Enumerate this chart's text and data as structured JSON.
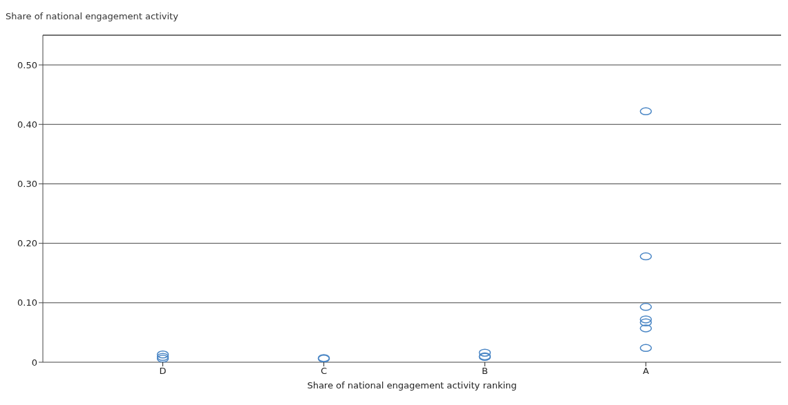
{
  "chart_data": {
    "type": "scatter",
    "ylabel": "Share of national engagement activity",
    "xlabel": "Share of national engagement activity ranking",
    "categories": [
      "D",
      "C",
      "B",
      "A"
    ],
    "series": [
      {
        "color": "#4a86c5",
        "x": [
          "D",
          "D",
          "D",
          "C",
          "C",
          "B",
          "B",
          "B",
          "A",
          "A",
          "A",
          "A",
          "A",
          "A",
          "A"
        ],
        "values": [
          0.006,
          0.009,
          0.013,
          0.006,
          0.007,
          0.009,
          0.01,
          0.016,
          0.422,
          0.178,
          0.093,
          0.072,
          0.067,
          0.057,
          0.024
        ]
      }
    ],
    "ylim": [
      0,
      0.55
    ],
    "yticks": [
      0,
      {
        "value": 0.1,
        "label": "0.10"
      },
      {
        "value": 0.2,
        "label": "0.20"
      },
      {
        "value": 0.3,
        "label": "0.30"
      },
      {
        "value": 0.4,
        "label": "0.40"
      },
      {
        "value": 0.5,
        "label": "0.50"
      }
    ],
    "grid": "y",
    "marker": "circle"
  }
}
